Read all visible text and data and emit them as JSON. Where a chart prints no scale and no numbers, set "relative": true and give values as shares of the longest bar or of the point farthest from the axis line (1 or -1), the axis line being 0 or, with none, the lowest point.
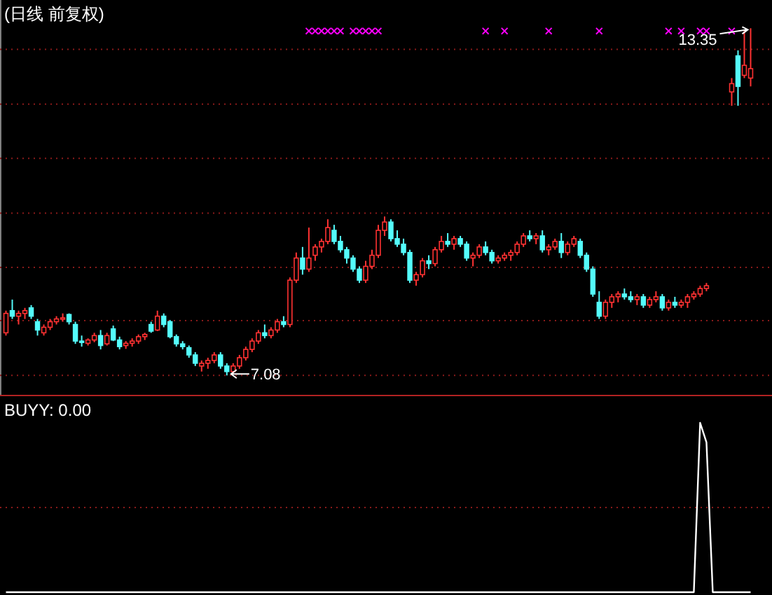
{
  "chart_data": [
    {
      "type": "candlestick",
      "title": "(日线 前复权)",
      "grid": "y",
      "ylim": [
        6.73,
        13.86
      ],
      "yticks": [
        {
          "value": 7.08,
          "label": null
        },
        {
          "value": 8.07,
          "label": null
        },
        {
          "value": 9.03,
          "label": null
        },
        {
          "value": 10.01,
          "label": null
        },
        {
          "value": 11.0,
          "label": null
        },
        {
          "value": 11.98,
          "label": null
        },
        {
          "value": 12.97,
          "label": null
        }
      ],
      "categories": [
        null,
        null,
        null,
        null,
        null,
        null,
        null,
        null,
        null,
        null,
        null,
        null,
        null,
        null,
        null,
        null,
        null,
        null,
        null,
        null,
        null,
        null,
        null,
        null,
        null,
        null,
        null,
        null,
        null,
        null,
        null,
        null,
        null,
        null,
        null,
        null,
        null,
        null,
        null,
        null,
        null,
        null,
        null,
        null,
        null,
        null,
        null,
        null,
        null,
        null,
        null,
        null,
        null,
        null,
        null,
        null,
        null,
        null,
        null,
        null,
        null,
        null,
        null,
        null,
        null,
        null,
        null,
        null,
        null,
        null,
        null,
        null,
        null,
        null,
        null,
        null,
        null,
        null,
        null,
        null,
        null,
        null,
        null,
        null,
        null,
        null,
        null,
        null,
        null,
        null,
        null,
        null,
        null,
        null,
        null,
        null,
        null,
        null,
        null,
        null,
        null,
        null,
        null,
        null,
        null,
        null,
        null,
        null,
        null,
        null,
        null,
        null,
        null,
        null,
        null,
        null,
        null,
        null,
        null
      ],
      "ohlc": [
        [
          7.85,
          8.25,
          7.8,
          8.2
        ],
        [
          8.25,
          8.45,
          8.1,
          8.15
        ],
        [
          8.15,
          8.25,
          8.0,
          8.2
        ],
        [
          8.2,
          8.3,
          8.1,
          8.25
        ],
        [
          8.3,
          8.35,
          8.1,
          8.15
        ],
        [
          8.05,
          8.1,
          7.8,
          7.9
        ],
        [
          7.85,
          8.0,
          7.8,
          7.95
        ],
        [
          7.95,
          8.1,
          7.9,
          8.05
        ],
        [
          8.05,
          8.15,
          8.0,
          8.1
        ],
        [
          8.1,
          8.2,
          8.05,
          8.12
        ],
        [
          8.18,
          8.2,
          8.0,
          8.05
        ],
        [
          8.0,
          8.05,
          7.65,
          7.7
        ],
        [
          7.7,
          7.8,
          7.6,
          7.68
        ],
        [
          7.66,
          7.75,
          7.62,
          7.72
        ],
        [
          7.72,
          7.85,
          7.68,
          7.8
        ],
        [
          7.8,
          7.9,
          7.55,
          7.62
        ],
        [
          7.65,
          7.85,
          7.62,
          7.8
        ],
        [
          7.92,
          7.98,
          7.7,
          7.72
        ],
        [
          7.72,
          7.78,
          7.55,
          7.6
        ],
        [
          7.62,
          7.7,
          7.56,
          7.66
        ],
        [
          7.66,
          7.75,
          7.6,
          7.7
        ],
        [
          7.7,
          7.82,
          7.65,
          7.78
        ],
        [
          7.78,
          7.85,
          7.72,
          7.82
        ],
        [
          8.0,
          8.05,
          7.85,
          7.88
        ],
        [
          7.9,
          8.25,
          7.88,
          8.15
        ],
        [
          8.15,
          8.2,
          7.95,
          8.0
        ],
        [
          8.05,
          8.08,
          7.75,
          7.78
        ],
        [
          7.78,
          7.82,
          7.6,
          7.65
        ],
        [
          7.65,
          7.7,
          7.55,
          7.6
        ],
        [
          7.58,
          7.62,
          7.4,
          7.45
        ],
        [
          7.45,
          7.5,
          7.25,
          7.3
        ],
        [
          7.25,
          7.35,
          7.15,
          7.3
        ],
        [
          7.3,
          7.4,
          7.2,
          7.35
        ],
        [
          7.35,
          7.5,
          7.3,
          7.45
        ],
        [
          7.45,
          7.5,
          7.2,
          7.25
        ],
        [
          7.25,
          7.3,
          7.08,
          7.15
        ],
        [
          7.15,
          7.3,
          7.1,
          7.25
        ],
        [
          7.25,
          7.45,
          7.2,
          7.4
        ],
        [
          7.4,
          7.6,
          7.35,
          7.55
        ],
        [
          7.55,
          7.75,
          7.5,
          7.7
        ],
        [
          7.7,
          7.9,
          7.65,
          7.85
        ],
        [
          7.85,
          8.0,
          7.75,
          7.8
        ],
        [
          7.8,
          7.95,
          7.75,
          7.9
        ],
        [
          7.9,
          8.1,
          7.85,
          8.05
        ],
        [
          8.05,
          8.15,
          7.95,
          8.0
        ],
        [
          8.0,
          8.85,
          7.95,
          8.8
        ],
        [
          8.8,
          9.3,
          8.75,
          9.2
        ],
        [
          9.2,
          9.4,
          8.9,
          9.0
        ],
        [
          9.0,
          9.75,
          8.95,
          9.2
        ],
        [
          9.25,
          9.45,
          9.15,
          9.4
        ],
        [
          9.4,
          9.55,
          9.3,
          9.5
        ],
        [
          9.5,
          9.9,
          9.45,
          9.75
        ],
        [
          9.7,
          9.8,
          9.45,
          9.5
        ],
        [
          9.5,
          9.6,
          9.3,
          9.35
        ],
        [
          9.35,
          9.4,
          9.1,
          9.2
        ],
        [
          9.2,
          9.25,
          8.95,
          9.0
        ],
        [
          9.0,
          9.05,
          8.75,
          8.8
        ],
        [
          8.8,
          9.15,
          8.75,
          9.05
        ],
        [
          9.05,
          9.35,
          9.0,
          9.25
        ],
        [
          9.25,
          9.8,
          9.2,
          9.7
        ],
        [
          9.7,
          9.95,
          9.6,
          9.85
        ],
        [
          9.85,
          9.9,
          9.5,
          9.55
        ],
        [
          9.55,
          9.7,
          9.4,
          9.45
        ],
        [
          9.45,
          9.55,
          9.25,
          9.3
        ],
        [
          9.3,
          9.35,
          8.75,
          8.8
        ],
        [
          8.8,
          8.95,
          8.7,
          8.9
        ],
        [
          8.9,
          9.2,
          8.85,
          9.15
        ],
        [
          9.15,
          9.25,
          9.0,
          9.1
        ],
        [
          9.1,
          9.4,
          9.05,
          9.35
        ],
        [
          9.35,
          9.6,
          9.3,
          9.5
        ],
        [
          9.5,
          9.65,
          9.4,
          9.45
        ],
        [
          9.45,
          9.6,
          9.35,
          9.55
        ],
        [
          9.55,
          9.6,
          9.4,
          9.45
        ],
        [
          9.45,
          9.5,
          9.15,
          9.2
        ],
        [
          9.2,
          9.3,
          9.05,
          9.25
        ],
        [
          9.25,
          9.45,
          9.2,
          9.4
        ],
        [
          9.4,
          9.5,
          9.25,
          9.3
        ],
        [
          9.3,
          9.35,
          9.1,
          9.15
        ],
        [
          9.15,
          9.25,
          9.1,
          9.2
        ],
        [
          9.2,
          9.3,
          9.15,
          9.25
        ],
        [
          9.25,
          9.35,
          9.15,
          9.3
        ],
        [
          9.3,
          9.5,
          9.25,
          9.45
        ],
        [
          9.45,
          9.65,
          9.4,
          9.6
        ],
        [
          9.6,
          9.7,
          9.5,
          9.55
        ],
        [
          9.55,
          9.65,
          9.45,
          9.6
        ],
        [
          9.6,
          9.7,
          9.3,
          9.35
        ],
        [
          9.35,
          9.45,
          9.25,
          9.4
        ],
        [
          9.4,
          9.55,
          9.35,
          9.5
        ],
        [
          9.5,
          9.65,
          9.2,
          9.3
        ],
        [
          9.3,
          9.5,
          9.25,
          9.45
        ],
        [
          9.45,
          9.6,
          9.4,
          9.55
        ],
        [
          9.5,
          9.55,
          9.2,
          9.25
        ],
        [
          9.25,
          9.3,
          8.95,
          9.0
        ],
        [
          9.0,
          9.05,
          8.5,
          8.55
        ],
        [
          8.4,
          8.6,
          8.1,
          8.15
        ],
        [
          8.15,
          8.45,
          8.1,
          8.4
        ],
        [
          8.4,
          8.55,
          8.3,
          8.5
        ],
        [
          8.5,
          8.6,
          8.4,
          8.55
        ],
        [
          8.55,
          8.65,
          8.45,
          8.5
        ],
        [
          8.5,
          8.6,
          8.4,
          8.45
        ],
        [
          8.45,
          8.55,
          8.35,
          8.5
        ],
        [
          8.5,
          8.55,
          8.3,
          8.35
        ],
        [
          8.35,
          8.5,
          8.3,
          8.45
        ],
        [
          8.45,
          8.6,
          8.4,
          8.5
        ],
        [
          8.5,
          8.55,
          8.25,
          8.3
        ],
        [
          8.3,
          8.45,
          8.25,
          8.4
        ],
        [
          8.4,
          8.5,
          8.3,
          8.35
        ],
        [
          8.35,
          8.45,
          8.3,
          8.4
        ],
        [
          8.4,
          8.55,
          8.3,
          8.5
        ],
        [
          8.5,
          8.6,
          8.45,
          8.55
        ],
        [
          8.55,
          8.7,
          8.5,
          8.65
        ],
        [
          8.65,
          8.75,
          8.6,
          8.7
        ],
        null,
        null,
        null,
        [
          12.2,
          12.45,
          11.95,
          12.35
        ],
        [
          12.85,
          12.95,
          11.95,
          12.3
        ],
        [
          12.5,
          13.3,
          12.45,
          12.68
        ],
        [
          12.45,
          13.35,
          12.3,
          12.62
        ]
      ],
      "series": [
        {
          "type": "scatter",
          "color": "#ff00ff",
          "marker": "cross",
          "values": [
            null,
            null,
            null,
            null,
            null,
            null,
            null,
            null,
            null,
            null,
            null,
            null,
            null,
            null,
            null,
            null,
            null,
            null,
            null,
            null,
            null,
            null,
            null,
            null,
            null,
            null,
            null,
            null,
            null,
            null,
            null,
            null,
            null,
            null,
            null,
            null,
            null,
            null,
            null,
            null,
            null,
            null,
            null,
            null,
            null,
            null,
            null,
            null,
            13.3,
            13.3,
            13.3,
            13.3,
            13.3,
            13.3,
            null,
            13.3,
            13.3,
            13.3,
            13.3,
            13.3,
            null,
            null,
            null,
            null,
            null,
            null,
            null,
            null,
            null,
            null,
            null,
            null,
            null,
            null,
            null,
            null,
            13.3,
            null,
            null,
            13.3,
            null,
            null,
            null,
            null,
            null,
            null,
            13.3,
            null,
            null,
            null,
            null,
            null,
            null,
            null,
            13.3,
            null,
            null,
            null,
            null,
            null,
            null,
            null,
            null,
            null,
            null,
            13.3,
            null,
            13.3,
            null,
            null,
            13.3,
            13.3,
            null,
            null,
            null,
            13.3,
            null,
            null,
            null
          ]
        }
      ],
      "annotations": [
        {
          "text": "13.35",
          "y": 13.35
        },
        "7.08"
      ]
    },
    {
      "type": "line",
      "title": "BUYY: 0.00",
      "relative": true,
      "color": "#ffffff",
      "ref_lines": [
        {
          "axis": "y",
          "value": 0.5,
          "color": "#8b1a1a",
          "line_style": "dotted"
        }
      ],
      "categories": [
        null,
        null,
        null,
        null,
        null,
        null,
        null,
        null,
        null,
        null,
        null,
        null,
        null,
        null,
        null,
        null,
        null,
        null,
        null,
        null,
        null,
        null,
        null,
        null,
        null,
        null,
        null,
        null,
        null,
        null,
        null,
        null,
        null,
        null,
        null,
        null,
        null,
        null,
        null,
        null,
        null,
        null,
        null,
        null,
        null,
        null,
        null,
        null,
        null,
        null,
        null,
        null,
        null,
        null,
        null,
        null,
        null,
        null,
        null,
        null,
        null,
        null,
        null,
        null,
        null,
        null,
        null,
        null,
        null,
        null,
        null,
        null,
        null,
        null,
        null,
        null,
        null,
        null,
        null,
        null,
        null,
        null,
        null,
        null,
        null,
        null,
        null,
        null,
        null,
        null,
        null,
        null,
        null,
        null,
        null,
        null,
        null,
        null,
        null,
        null,
        null,
        null,
        null,
        null,
        null,
        null,
        null,
        null,
        null,
        null,
        null,
        null,
        null,
        null,
        null,
        null,
        null,
        null,
        null
      ],
      "values": [
        0,
        0,
        0,
        0,
        0,
        0,
        0,
        0,
        0,
        0,
        0,
        0,
        0,
        0,
        0,
        0,
        0,
        0,
        0,
        0,
        0,
        0,
        0,
        0,
        0,
        0,
        0,
        0,
        0,
        0,
        0,
        0,
        0,
        0,
        0,
        0,
        0,
        0,
        0,
        0,
        0,
        0,
        0,
        0,
        0,
        0,
        0,
        0,
        0,
        0,
        0,
        0,
        0,
        0,
        0,
        0,
        0,
        0,
        0,
        0,
        0,
        0,
        0,
        0,
        0,
        0,
        0,
        0,
        0,
        0,
        0,
        0,
        0,
        0,
        0,
        0,
        0,
        0,
        0,
        0,
        0,
        0,
        0,
        0,
        0,
        0,
        0,
        0,
        0,
        0,
        0,
        0,
        0,
        0,
        0,
        0,
        0,
        0,
        0,
        0,
        0,
        0,
        0,
        0,
        0,
        0,
        0,
        0,
        0,
        0,
        1,
        0.885,
        0,
        0,
        0,
        0,
        0,
        0,
        0
      ]
    }
  ]
}
